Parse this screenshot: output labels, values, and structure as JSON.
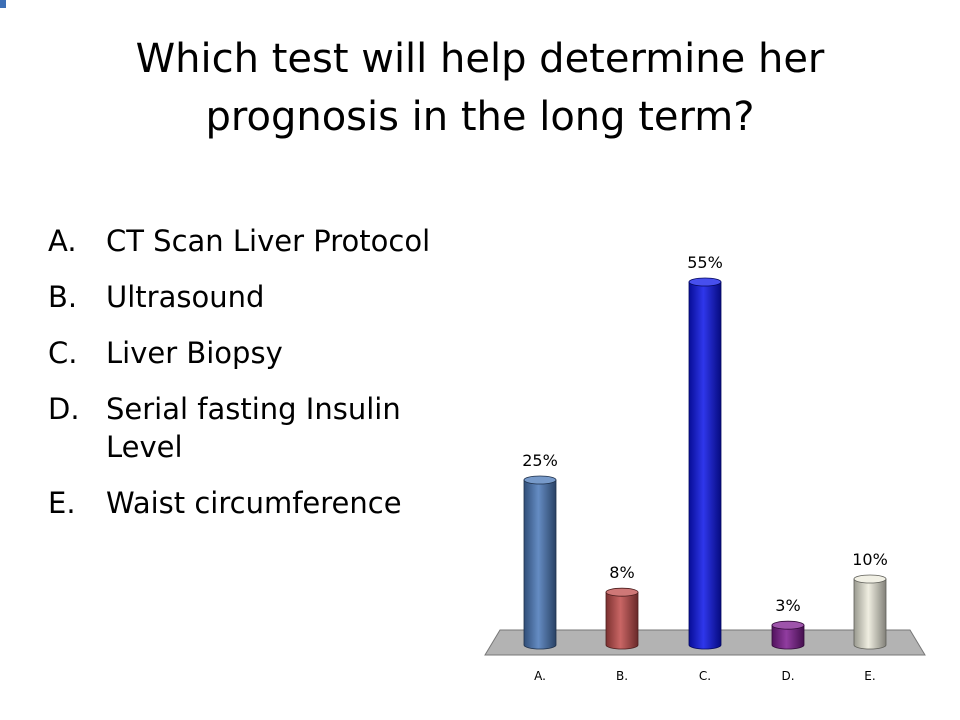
{
  "slide": {
    "title": "Which test will help determine her prognosis in the  long term?",
    "options": [
      {
        "letter": "A.",
        "text": "CT Scan Liver Protocol"
      },
      {
        "letter": "B.",
        "text": "Ultrasound"
      },
      {
        "letter": "C.",
        "text": "Liver Biopsy"
      },
      {
        "letter": "D.",
        "text": "Serial fasting Insulin Level"
      },
      {
        "letter": "E.",
        "text": "Waist circumference"
      }
    ]
  },
  "chart_data": {
    "type": "bar",
    "categories": [
      "A.",
      "B.",
      "C.",
      "D.",
      "E."
    ],
    "values": [
      25,
      8,
      55,
      3,
      10
    ],
    "data_labels": [
      "25%",
      "8%",
      "55%",
      "3%",
      "10%"
    ],
    "ylim": [
      0,
      55
    ],
    "grid": false,
    "colors": [
      "#4a78b8",
      "#bf4b4a",
      "#0a14e8",
      "#7d1b8f",
      "#ecebdc"
    ],
    "floor_color": "#b3b3b3"
  }
}
